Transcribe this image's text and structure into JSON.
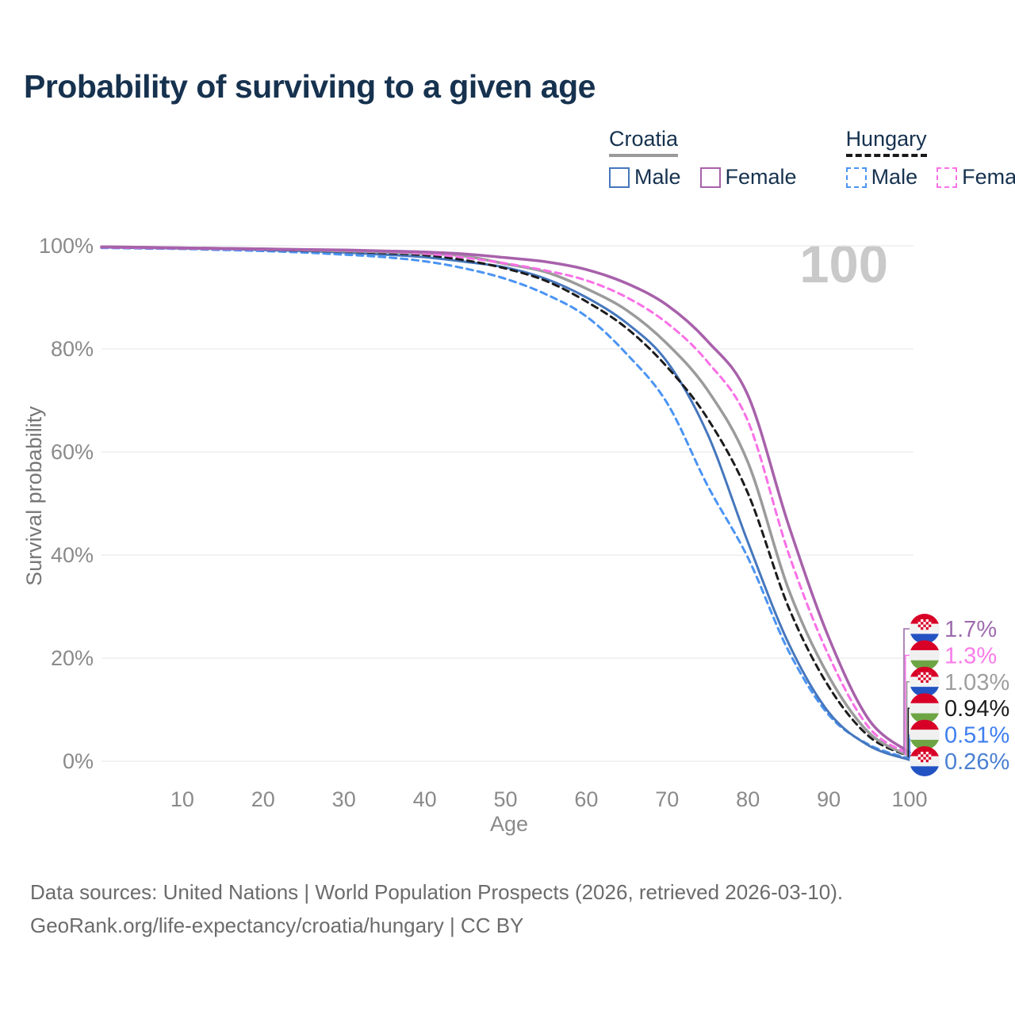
{
  "header": {
    "title": "Probability of surviving to a given age"
  },
  "legend": {
    "groups": [
      {
        "label": "Croatia",
        "underline_color": "#9a9a9a",
        "underline_style": "solid",
        "items": [
          {
            "label": "Male",
            "box_color": "#4677bd",
            "box_style": "solid"
          },
          {
            "label": "Female",
            "box_color": "#a861ab",
            "box_style": "solid"
          }
        ]
      },
      {
        "label": "Hungary",
        "underline_color": "#1a1a1a",
        "underline_style": "dashed",
        "items": [
          {
            "label": "Male",
            "box_color": "#4b94f2",
            "box_style": "dashed"
          },
          {
            "label": "Female",
            "box_color": "#f970e6",
            "box_style": "dashed"
          }
        ]
      }
    ]
  },
  "chart_data": {
    "type": "line",
    "title": "Probability of surviving to a given age",
    "xlabel": "Age",
    "ylabel": "Survival probability",
    "xlim": [
      0,
      100
    ],
    "ylim": [
      0,
      100
    ],
    "grid": "horizontal-only",
    "watermark": "100",
    "x_ticks": [
      {
        "value": 10,
        "label": "10"
      },
      {
        "value": 20,
        "label": "20"
      },
      {
        "value": 30,
        "label": "30"
      },
      {
        "value": 40,
        "label": "40"
      },
      {
        "value": 50,
        "label": "50"
      },
      {
        "value": 60,
        "label": "60"
      },
      {
        "value": 70,
        "label": "70"
      },
      {
        "value": 80,
        "label": "80"
      },
      {
        "value": 90,
        "label": "90"
      },
      {
        "value": 100,
        "label": "100"
      }
    ],
    "y_ticks": [
      {
        "value": 0,
        "label": "0%"
      },
      {
        "value": 20,
        "label": "20%"
      },
      {
        "value": 40,
        "label": "40%"
      },
      {
        "value": 60,
        "label": "60%"
      },
      {
        "value": 80,
        "label": "80%"
      },
      {
        "value": 100,
        "label": "100%"
      }
    ],
    "x": [
      0,
      5,
      10,
      15,
      20,
      25,
      30,
      35,
      40,
      45,
      50,
      55,
      60,
      65,
      70,
      75,
      80,
      85,
      90,
      95,
      100
    ],
    "series": [
      {
        "name": "Hungary Male",
        "country": "Hungary",
        "sex": "Male",
        "color": "#4b94f2",
        "dash": "dashed",
        "width": 3,
        "values": [
          99.6,
          99.5,
          99.4,
          99.2,
          99.0,
          98.7,
          98.3,
          97.8,
          97.0,
          95.6,
          93.6,
          90.6,
          86.3,
          79.0,
          69.5,
          53.5,
          39.5,
          21.5,
          9.0,
          3.2,
          0.51
        ]
      },
      {
        "name": "Croatia Male",
        "country": "Croatia",
        "sex": "Male",
        "color": "#4677bd",
        "dash": "solid",
        "width": 3,
        "values": [
          99.7,
          99.6,
          99.5,
          99.4,
          99.2,
          99.0,
          98.7,
          98.3,
          97.8,
          96.9,
          95.8,
          93.6,
          90.0,
          85.0,
          77.5,
          63.5,
          42.5,
          23.0,
          9.5,
          3.0,
          0.26
        ]
      },
      {
        "name": "Hungary",
        "country": "Hungary",
        "sex": "Both",
        "color": "#1c1c1c",
        "dash": "dashed",
        "width": 3,
        "values": [
          99.7,
          99.6,
          99.5,
          99.4,
          99.3,
          99.1,
          98.9,
          98.6,
          98.2,
          97.2,
          95.6,
          93.2,
          89.2,
          84.0,
          76.5,
          66.5,
          52.0,
          30.0,
          14.5,
          4.8,
          0.94
        ]
      },
      {
        "name": "Croatia",
        "country": "Croatia",
        "sex": "Both",
        "color": "#9b9b9b",
        "dash": "solid",
        "width": 3.5,
        "values": [
          99.8,
          99.7,
          99.6,
          99.5,
          99.4,
          99.2,
          99.0,
          98.8,
          98.5,
          98.0,
          96.5,
          94.9,
          91.7,
          87.5,
          81.0,
          72.0,
          58.0,
          33.5,
          16.5,
          5.5,
          1.03
        ]
      },
      {
        "name": "Hungary Female",
        "country": "Hungary",
        "sex": "Female",
        "color": "#f970e6",
        "dash": "dashed",
        "width": 3,
        "values": [
          99.7,
          99.6,
          99.5,
          99.4,
          99.3,
          99.2,
          99.1,
          98.9,
          98.5,
          97.7,
          96.6,
          95.2,
          93.3,
          90.0,
          85.0,
          77.5,
          66.0,
          40.5,
          20.5,
          6.5,
          1.3
        ]
      },
      {
        "name": "Croatia Female",
        "country": "Croatia",
        "sex": "Female",
        "color": "#a861ab",
        "dash": "solid",
        "width": 3.5,
        "values": [
          99.8,
          99.7,
          99.6,
          99.5,
          99.4,
          99.3,
          99.2,
          99.0,
          98.8,
          98.4,
          97.7,
          96.9,
          95.4,
          92.7,
          88.5,
          81.5,
          71.0,
          46.0,
          24.0,
          8.0,
          1.7
        ]
      }
    ],
    "end_labels": [
      {
        "text": "1.7%",
        "value": 1.7,
        "series": "Croatia Female",
        "flag": "croatia",
        "color": "#9d6bad"
      },
      {
        "text": "1.3%",
        "value": 1.3,
        "series": "Hungary Female",
        "flag": "hungary",
        "color": "#f97ce9"
      },
      {
        "text": "1.03%",
        "value": 1.03,
        "series": "Croatia",
        "flag": "croatia",
        "color": "#9e9e9e"
      },
      {
        "text": "0.94%",
        "value": 0.94,
        "series": "Hungary",
        "flag": "hungary",
        "color": "#1c1c1c"
      },
      {
        "text": "0.51%",
        "value": 0.51,
        "series": "Hungary Male",
        "flag": "hungary",
        "color": "#3e7ef0"
      },
      {
        "text": "0.26%",
        "value": 0.26,
        "series": "Croatia Male",
        "flag": "croatia",
        "color": "#4b80d1"
      }
    ],
    "flag_colors": {
      "croatia": {
        "top": "#d80027",
        "mid": "#f2f2f2",
        "bottom": "#2353c3",
        "checker": "#d80027"
      },
      "hungary": {
        "top": "#d80027",
        "mid": "#f0f0f0",
        "bottom": "#6da544"
      }
    }
  },
  "footer": {
    "line1": "Data sources: United Nations | World Population Prospects (2026, retrieved 2026-03-10).",
    "line2": "GeoRank.org/life-expectancy/croatia/hungary | CC BY"
  }
}
